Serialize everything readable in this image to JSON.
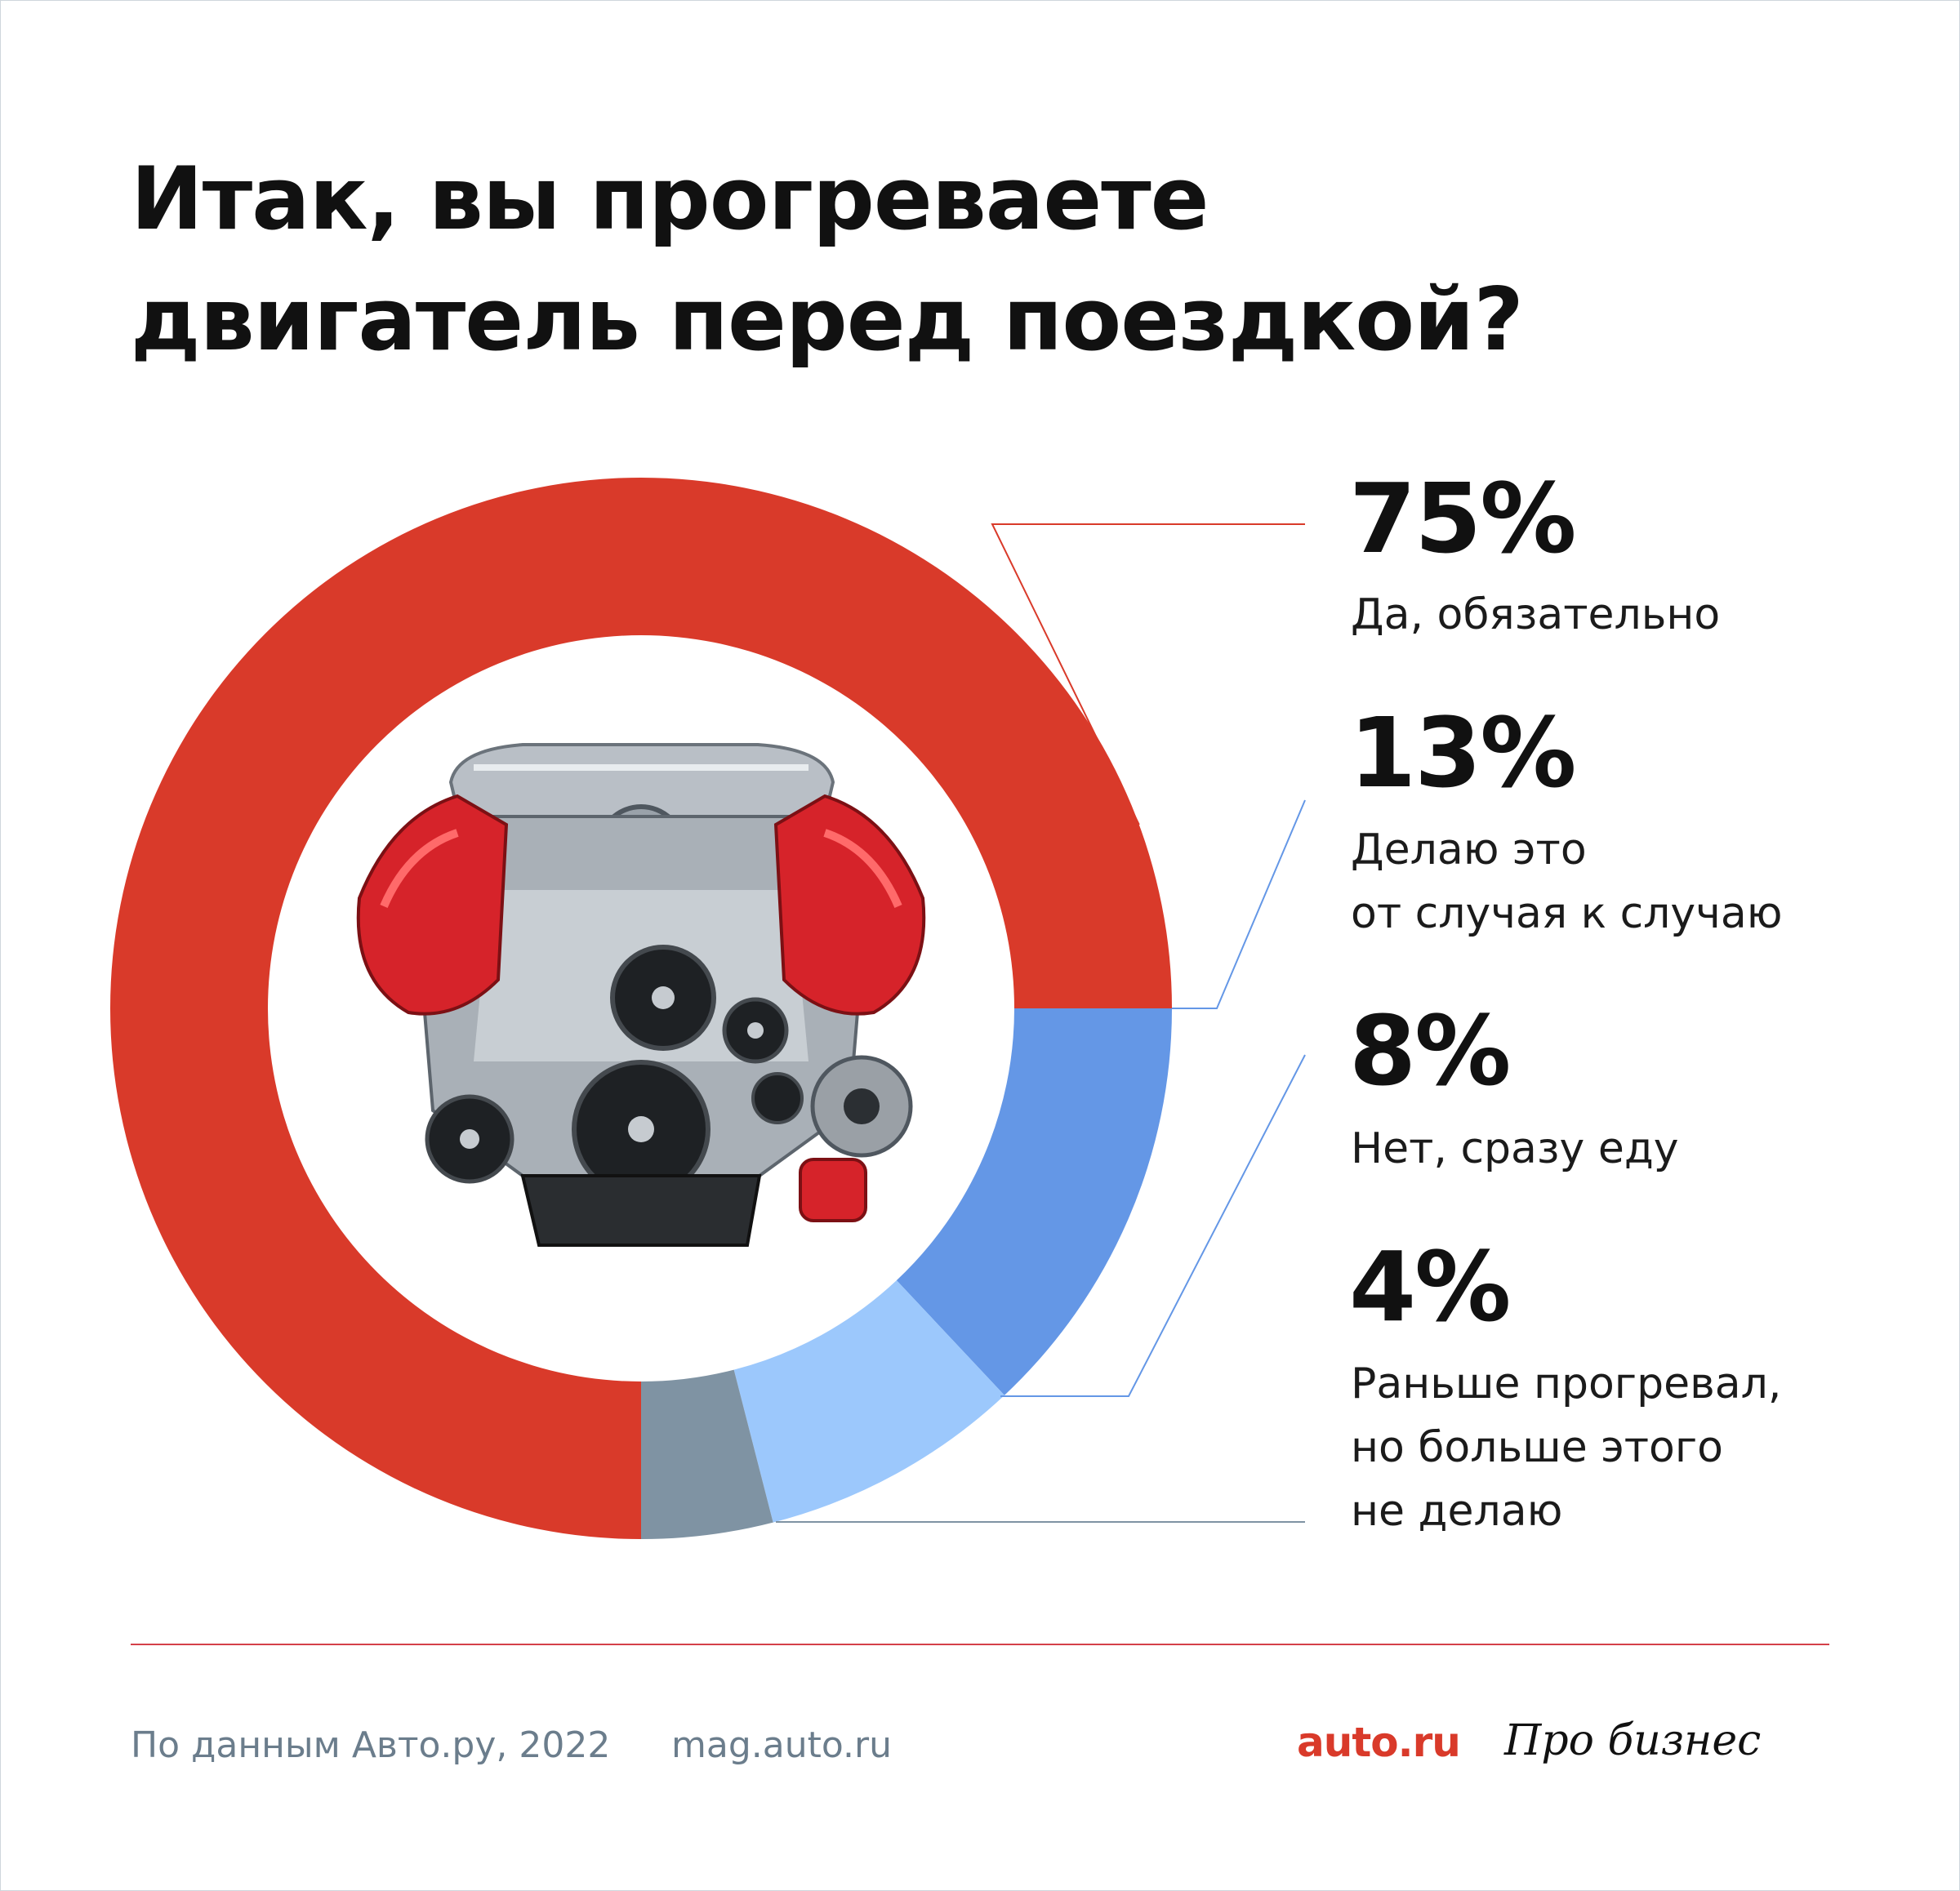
{
  "title": {
    "line1": "Итак, вы прогреваете",
    "line2": "двигатель перед поездкой?"
  },
  "chart_data": {
    "type": "pie",
    "style": "donut",
    "categories": [
      "Да, обязательно",
      "Делаю это от случая к случаю",
      "Нет, сразу еду",
      "Раньше прогревал, но больше этого не делаю"
    ],
    "values": [
      75,
      13,
      8,
      4
    ],
    "value_labels": [
      "75%",
      "13%",
      "8%",
      "4%"
    ],
    "label_lines": [
      [
        "Да, обязательно"
      ],
      [
        "Делаю это",
        "от случая к случаю"
      ],
      [
        "Нет, сразу еду"
      ],
      [
        "Раньше прогревал,",
        "но больше этого",
        "не делаю"
      ]
    ],
    "colors": [
      "#d93a2a",
      "#6497e6",
      "#9cc8fc",
      "#7f93a3"
    ],
    "center_image": "engine-illustration",
    "legend": "right"
  },
  "footer": {
    "source": "По данным Авто.ру, 2022",
    "url": "mag.auto.ru",
    "logo_auto": "auto.ru",
    "logo_biz": "Про бизнес"
  },
  "colors": {
    "brand_red": "#d93a2a",
    "footer_text": "#6b7d8c",
    "divider": "#d4404a"
  }
}
